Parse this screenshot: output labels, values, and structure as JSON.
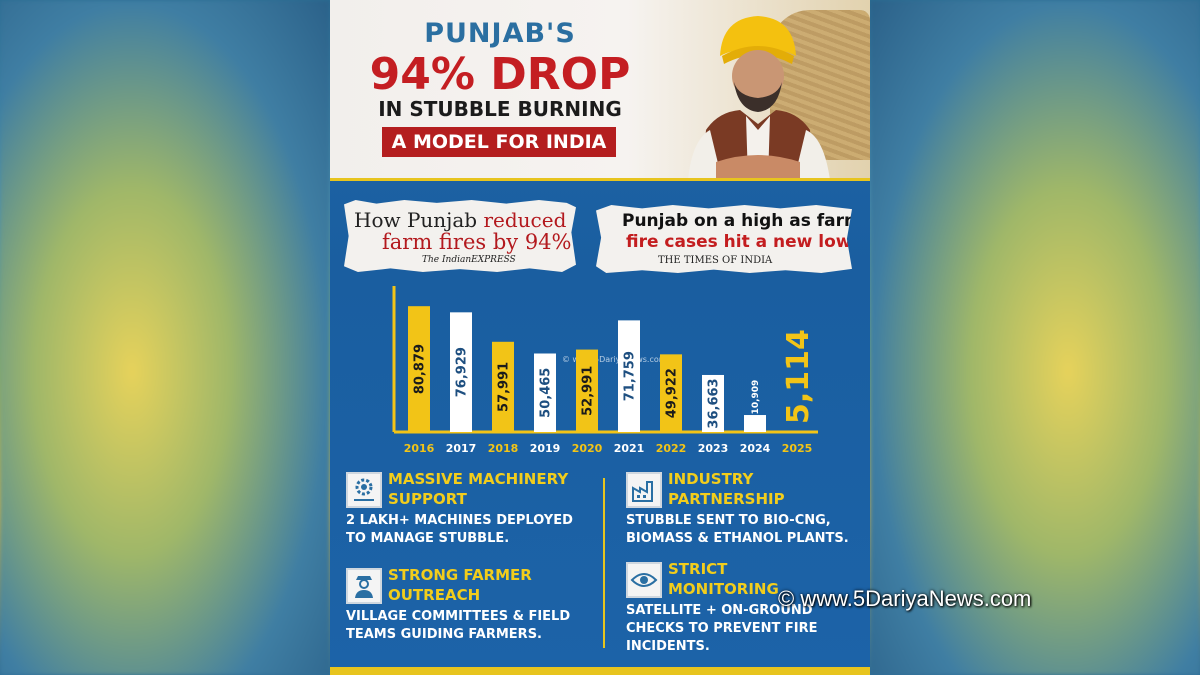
{
  "header": {
    "line1": "PUNJAB'S",
    "line2": "94% DROP",
    "line3": "IN STUBBLE BURNING",
    "banner": "A MODEL FOR INDIA"
  },
  "clippings": [
    {
      "line_a_black": "How Punjab ",
      "line_a_red": "reduced",
      "line_b": "farm fires by 94%",
      "source": "The IndianEXPRESS"
    },
    {
      "line_a": "Punjab on a high as farm",
      "line_b": "fire cases hit a new low",
      "source": "THE TIMES OF INDIA"
    }
  ],
  "chart_data": {
    "type": "bar",
    "categories": [
      "2016",
      "2017",
      "2018",
      "2019",
      "2020",
      "2021",
      "2022",
      "2023",
      "2024",
      "2025"
    ],
    "values": [
      80879,
      76929,
      57991,
      50465,
      52991,
      71759,
      49922,
      36663,
      10909,
      5114
    ],
    "labels": [
      "80,879",
      "76,929",
      "57,991",
      "50,465",
      "52,991",
      "71,759",
      "49,922",
      "36,663",
      "10,909",
      "5,114"
    ],
    "title": "",
    "xlabel": "",
    "ylabel": "",
    "colors": {
      "yellow": "#f2c417",
      "white": "#ffffff",
      "axis": "#f2c417"
    },
    "bar_colors": [
      "yellow",
      "white",
      "yellow",
      "white",
      "yellow",
      "white",
      "yellow",
      "white",
      "white",
      "yellow"
    ],
    "chart_watermark": "© www.5DariyaNews.com"
  },
  "features": [
    {
      "icon": "machinery-gear-icon",
      "title1": "MASSIVE MACHINERY",
      "title2": "SUPPORT",
      "desc1": "2 LAKH+ MACHINES DEPLOYED",
      "desc2": "TO MANAGE STUBBLE."
    },
    {
      "icon": "farmer-icon",
      "title1": "STRONG FARMER",
      "title2": "OUTREACH",
      "desc1": "VILLAGE COMMITTEES & FIELD",
      "desc2": "TEAMS GUIDING FARMERS."
    },
    {
      "icon": "factory-icon",
      "title1": "INDUSTRY",
      "title2": "PARTNERSHIP",
      "desc1": "STUBBLE SENT TO BIO-CNG,",
      "desc2": "BIOMASS & ETHANOL PLANTS."
    },
    {
      "icon": "monitoring-eye-icon",
      "title1": "STRICT",
      "title2": "MONITORING",
      "desc1": "SATELLITE + ON-GROUND",
      "desc2": "CHECKS TO PREVENT FIRE",
      "desc3": "INCIDENTS."
    }
  ],
  "watermark": "© www.5DariyaNews.com",
  "theme": {
    "brand_blue": "#1f67a6",
    "accent_yellow": "#e7c41e",
    "headline_red": "#c41e22"
  }
}
